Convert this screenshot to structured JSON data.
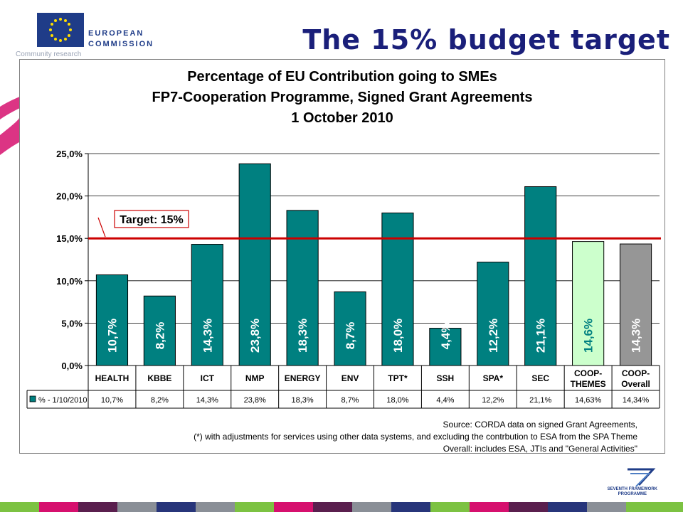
{
  "header": {
    "logo_line1": "EUROPEAN",
    "logo_line2": "COMMISSION",
    "logo_sub": "Community research",
    "title": "The 15% budget target"
  },
  "footer": {
    "fp7_line1": "SEVENTH FRAMEWORK",
    "fp7_line2": "PROGRAMME"
  },
  "colors": {
    "bar_teal": "#008080",
    "bar_light_green": "#ccffcc",
    "bar_grey": "#969696",
    "target_line": "#cc0000",
    "title_blue": "#1a1f7a"
  },
  "chart_data": {
    "type": "bar",
    "title_lines": [
      "Percentage of EU Contribution going to SMEs",
      "FP7-Cooperation Programme, Signed Grant Agreements",
      "1 October 2010"
    ],
    "categories": [
      "HEALTH",
      "KBBE",
      "ICT",
      "NMP",
      "ENERGY",
      "ENV",
      "TPT*",
      "SSH",
      "SPA*",
      "SEC",
      "COOP-\nTHEMES",
      "COOP-\nOverall"
    ],
    "series": [
      {
        "name": "% - 1/10/2010",
        "values": [
          10.7,
          8.2,
          14.3,
          23.8,
          18.3,
          8.7,
          18.0,
          4.4,
          12.2,
          21.1,
          14.63,
          14.34
        ],
        "bar_labels": [
          "10,7%",
          "8,2%",
          "14,3%",
          "23,8%",
          "18,3%",
          "8,7%",
          "18,0%",
          "4,4%",
          "12,2%",
          "21,1%",
          "14,6%",
          "14,3%"
        ],
        "table_values": [
          "10,7%",
          "8,2%",
          "14,3%",
          "23,8%",
          "18,3%",
          "8,7%",
          "18,0%",
          "4,4%",
          "12,2%",
          "21,1%",
          "14,63%",
          "14,34%"
        ],
        "bar_colors": [
          "#008080",
          "#008080",
          "#008080",
          "#008080",
          "#008080",
          "#008080",
          "#008080",
          "#008080",
          "#008080",
          "#008080",
          "#ccffcc",
          "#969696"
        ]
      }
    ],
    "ylim": [
      0,
      25
    ],
    "yticks": [
      0,
      5,
      10,
      15,
      20,
      25
    ],
    "ytick_labels": [
      "0,0%",
      "5,0%",
      "10,0%",
      "15,0%",
      "20,0%",
      "25,0%"
    ],
    "target": {
      "value": 15,
      "label": "Target: 15%"
    },
    "grid": true,
    "legend": "data-table",
    "notes": [
      "Source: CORDA data on signed Grant Agreements,",
      "(*) with adjustments for services using other data systems, and excluding the contrbution to ESA from the SPA Theme",
      "Overall: includes ESA, JTIs and \"General Activities\""
    ]
  }
}
